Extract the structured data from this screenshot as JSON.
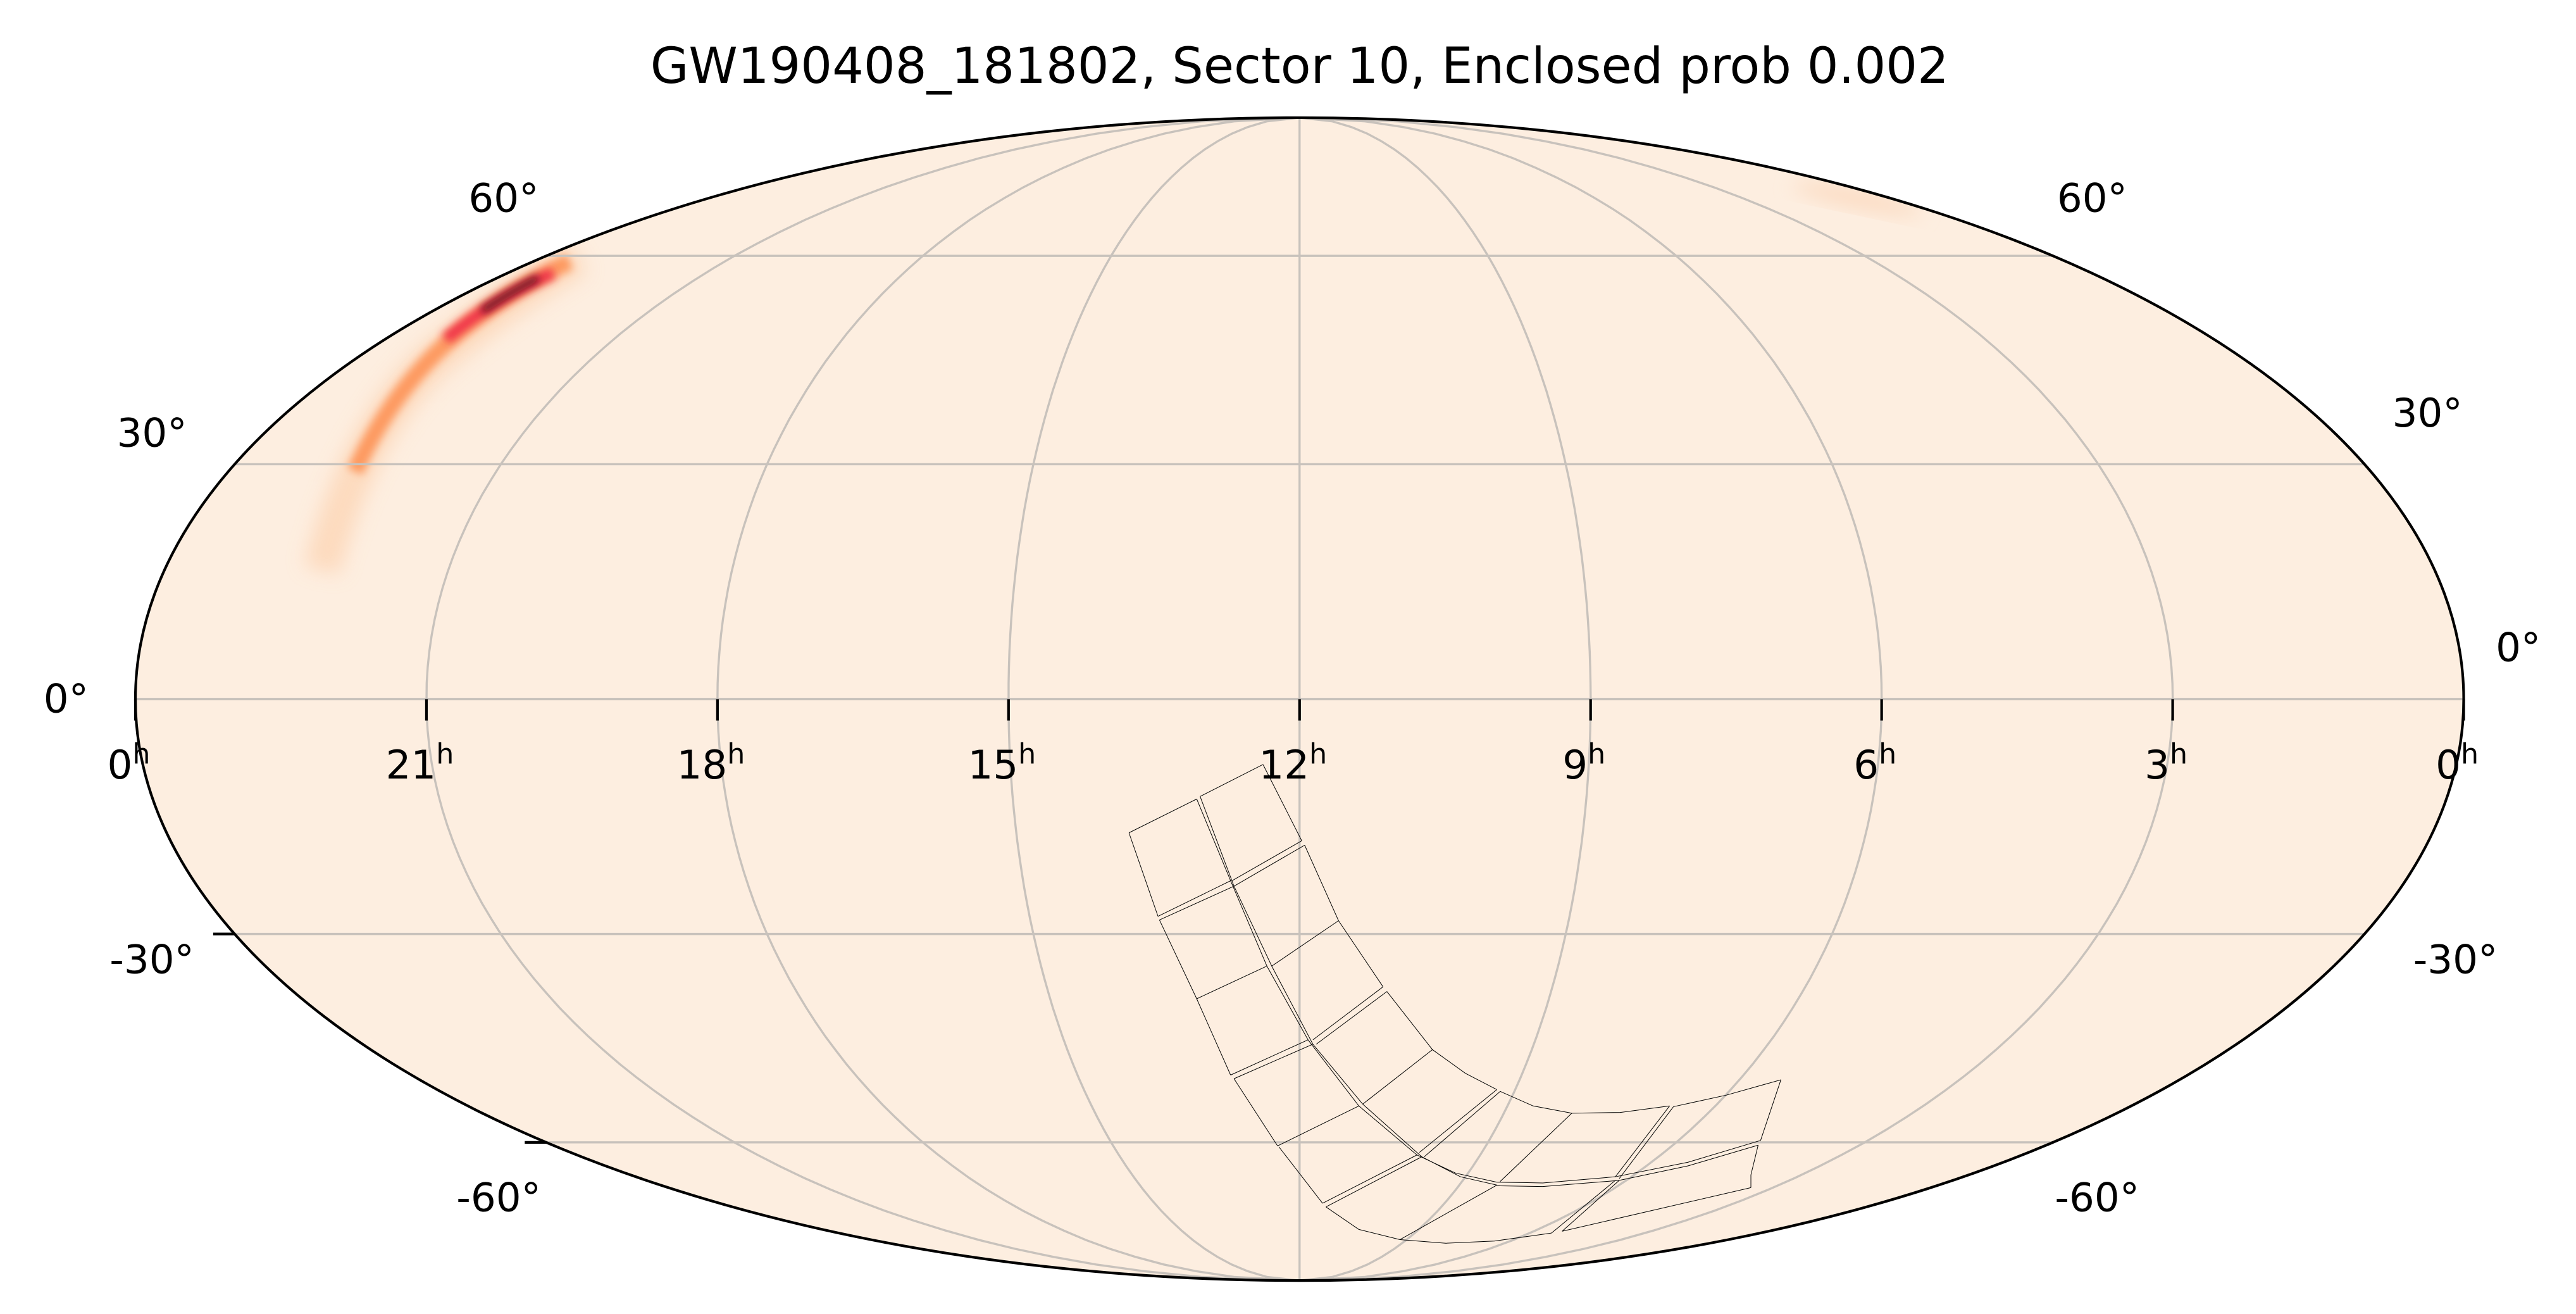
{
  "chart_data": {
    "type": "map",
    "projection": "mollweide",
    "title": "GW190408_181802, Sector 10, Enclosed prob 0.002",
    "grid": true,
    "colormap": "rocket_r (light cream to dark red/black)",
    "colors": {
      "background": "#fdeee0",
      "grid": "#c8c2bc",
      "outline": "#000000",
      "footprint": "#000000",
      "peak": "#3b0613"
    },
    "ra_ticks": [
      {
        "hours": 24,
        "value": "0",
        "unit": "h"
      },
      {
        "hours": 21,
        "value": "21",
        "unit": "h"
      },
      {
        "hours": 18,
        "value": "18",
        "unit": "h"
      },
      {
        "hours": 15,
        "value": "15",
        "unit": "h"
      },
      {
        "hours": 12,
        "value": "12",
        "unit": "h"
      },
      {
        "hours": 9,
        "value": "9",
        "unit": "h"
      },
      {
        "hours": 6,
        "value": "6",
        "unit": "h"
      },
      {
        "hours": 3,
        "value": "3",
        "unit": "h"
      },
      {
        "hours": 0,
        "value": "0",
        "unit": "h"
      }
    ],
    "dec_ticks_left": [
      "60°",
      "30°",
      "0°",
      "-30°",
      "-60°"
    ],
    "dec_ticks_right": [
      "60°",
      "30°",
      "0°",
      "-30°",
      "-60°"
    ],
    "probability_region": {
      "ra_range_h": [
        20.5,
        23
      ],
      "dec_range_deg": [
        10,
        58
      ],
      "peak_ra_h": 21.5,
      "peak_dec_deg": 52
    }
  }
}
